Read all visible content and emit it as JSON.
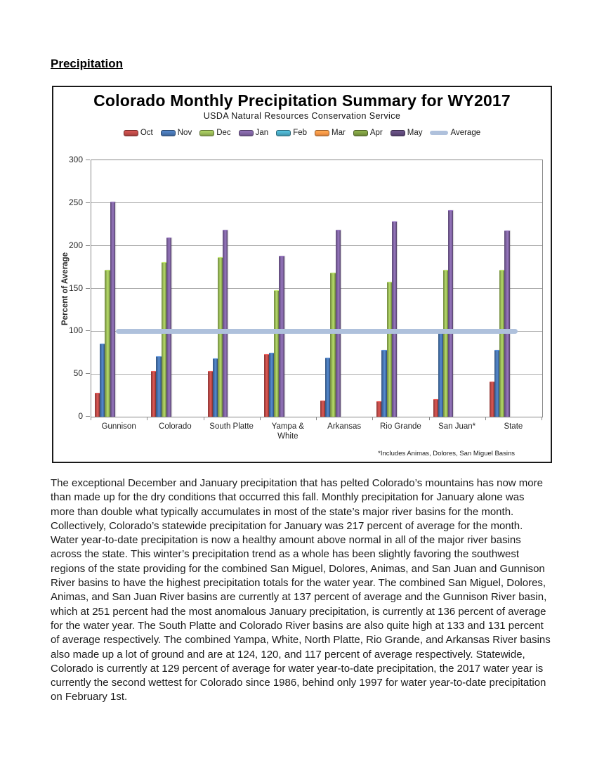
{
  "page": {
    "heading": "Precipitation"
  },
  "chart": {
    "title": "Colorado Monthly Precipitation Summary for WY2017",
    "subtitle": "USDA Natural Resources Conservation Service",
    "ylabel": "Percent of Average",
    "footnote": "*Includes Animas, Dolores, San Miguel Basins"
  },
  "chart_data": {
    "type": "bar",
    "title": "Colorado Monthly Precipitation Summary for WY2017",
    "subtitle": "USDA Natural Resources Conservation Service",
    "xlabel": "",
    "ylabel": "Percent of Average",
    "ylim": [
      0,
      300
    ],
    "ytick_step": 50,
    "grid": true,
    "legend_position": "top",
    "footnote": "*Includes Animas, Dolores, San Miguel Basins",
    "categories": [
      "Gunnison",
      "Colorado",
      "South Platte",
      "Yampa & White",
      "Arkansas",
      "Rio Grande",
      "San Juan*",
      "State"
    ],
    "series": [
      {
        "name": "Oct",
        "color": "#BE4B48",
        "values": [
          27,
          53,
          53,
          72,
          18,
          17,
          20,
          40
        ]
      },
      {
        "name": "Nov",
        "color": "#4876B2",
        "values": [
          85,
          70,
          67,
          74,
          68,
          77,
          97,
          77
        ]
      },
      {
        "name": "Dec",
        "color": "#9BBB59",
        "values": [
          171,
          180,
          186,
          147,
          168,
          157,
          171,
          171
        ]
      },
      {
        "name": "Jan",
        "color": "#8064A2",
        "values": [
          251,
          209,
          218,
          187,
          218,
          228,
          241,
          217
        ]
      },
      {
        "name": "Feb",
        "color": "#4BACC6",
        "values": [
          null,
          null,
          null,
          null,
          null,
          null,
          null,
          null
        ]
      },
      {
        "name": "Mar",
        "color": "#F79646",
        "values": [
          null,
          null,
          null,
          null,
          null,
          null,
          null,
          null
        ]
      },
      {
        "name": "Apr",
        "color": "#7E9D42",
        "values": [
          null,
          null,
          null,
          null,
          null,
          null,
          null,
          null
        ]
      },
      {
        "name": "May",
        "color": "#604A7B",
        "values": [
          null,
          null,
          null,
          null,
          null,
          null,
          null,
          null
        ]
      },
      {
        "name": "Average",
        "type": "line",
        "color": "#AFC1DC",
        "value": 100
      }
    ]
  },
  "body": {
    "paragraph": "The exceptional December and January precipitation that has pelted Colorado’s mountains has now more than made up for the dry conditions that occurred this fall. Monthly precipitation for January alone was more than double what typically accumulates in most of the state’s major river basins for the month. Collectively, Colorado’s statewide precipitation for January was 217 percent of average for the month. Water year-to-date precipitation is now a healthy amount above normal in all of the major river basins across the state. This winter’s precipitation trend as a whole has been slightly favoring the southwest regions of the state providing for the combined San Miguel, Dolores, Animas, and San Juan and Gunnison River basins to have the highest precipitation totals for the water year. The combined San Miguel, Dolores, Animas, and San Juan River basins are currently at 137 percent of average and the Gunnison River basin, which at 251 percent had the most anomalous January precipitation, is currently at 136 percent of average for the water year. The South Platte and Colorado River basins are also quite high at 133 and 131 percent of average respectively. The combined Yampa, White, North Platte, Rio Grande, and Arkansas River basins also made up a lot of ground and are at 124, 120, and 117 percent of average respectively. Statewide, Colorado is currently at 129 percent of average for water year-to-date precipitation, the 2017 water year is currently the second wettest for Colorado since 1986, behind only 1997 for water year-to-date precipitation on February 1st."
  }
}
